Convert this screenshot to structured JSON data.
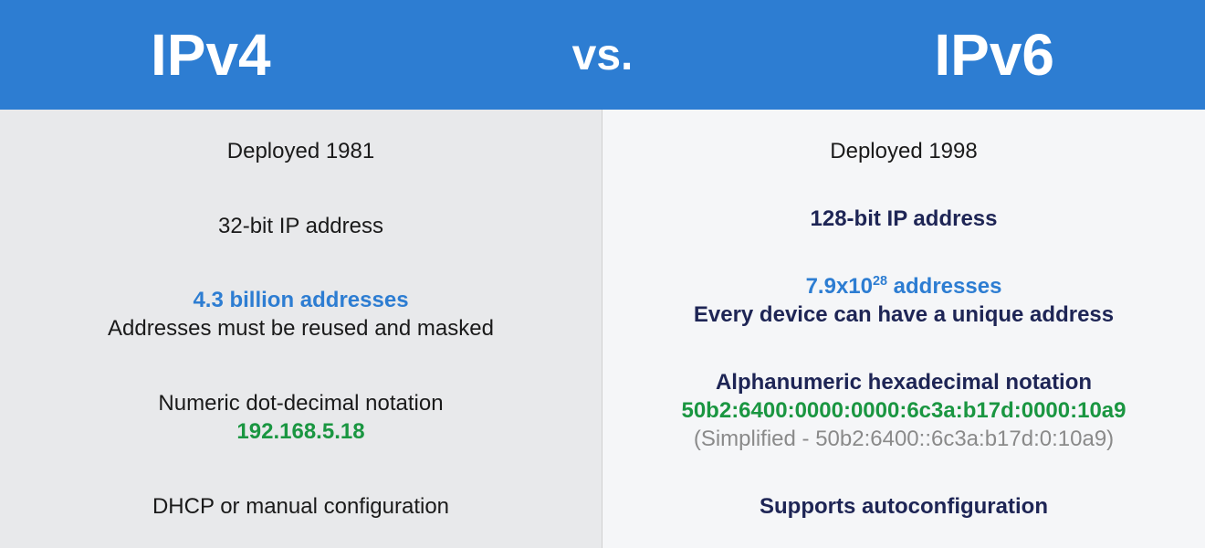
{
  "header": {
    "left_title": "IPv4",
    "vs_text": "vs.",
    "right_title": "IPv6",
    "bg_color": "#2d7dd2",
    "text_color": "#ffffff"
  },
  "left": {
    "bg_color": "#e8e9eb",
    "deployed": "Deployed 1981",
    "bits": "32-bit IP address",
    "addresses_count": "4.3 billion addresses",
    "addresses_note": "Addresses must be reused and masked",
    "notation_label": "Numeric dot-decimal notation",
    "notation_example": "192.168.5.18",
    "config": "DHCP or manual configuration"
  },
  "right": {
    "bg_color": "#f5f6f8",
    "deployed": "Deployed 1998",
    "bits": "128-bit IP address",
    "addresses_count_pre": "7.9x10",
    "addresses_count_sup": "28",
    "addresses_count_post": " addresses",
    "addresses_note": "Every device can have a unique address",
    "notation_label": "Alphanumeric hexadecimal notation",
    "notation_example": "50b2:6400:0000:0000:6c3a:b17d:0000:10a9",
    "notation_simplified": "(Simplified - 50b2:6400::6c3a:b17d:0:10a9)",
    "config": "Supports autoconfiguration"
  },
  "colors": {
    "dark": "#1a1a1a",
    "navy": "#1e2555",
    "blue": "#2d7dd2",
    "green": "#1a9641",
    "gray": "#8a8a8a"
  }
}
